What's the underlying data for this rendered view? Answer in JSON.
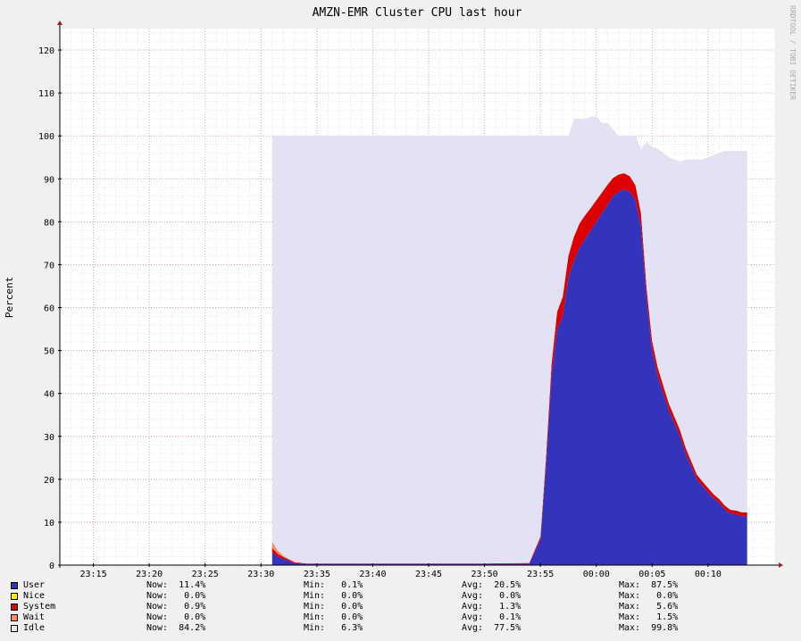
{
  "chart_data": {
    "type": "area",
    "stacked": true,
    "title": "AMZN-EMR Cluster CPU last hour",
    "ylabel": "Percent",
    "watermark": "RRDTOOL / TOBI OETIKER",
    "ylim": [
      0,
      125
    ],
    "yticks": [
      "0",
      "10",
      "20",
      "30",
      "40",
      "50",
      "60",
      "70",
      "80",
      "90",
      "100",
      "110",
      "120"
    ],
    "xlim": [
      "23:12",
      "00:16"
    ],
    "xticks": [
      "23:15",
      "23:20",
      "23:25",
      "23:30",
      "23:35",
      "23:40",
      "23:45",
      "23:50",
      "23:55",
      "00:00",
      "00:05",
      "00:10"
    ],
    "grid": true,
    "colors": {
      "User": "#3333bb",
      "Nice": "#ffea00",
      "System": "#dd0000",
      "Wait": "#ff8a60",
      "Idle": "#e2e2f2"
    },
    "x_minutes_after_2300": [
      31.0,
      31.5,
      32.0,
      32.5,
      33.0,
      34.0,
      40.0,
      45.0,
      50.0,
      54.0,
      55.0,
      55.5,
      56.0,
      56.5,
      57.0,
      57.5,
      58.0,
      58.5,
      59.0,
      59.5,
      60.0,
      60.5,
      61.0,
      61.5,
      62.0,
      62.5,
      63.0,
      63.5,
      64.0,
      64.5,
      65.0,
      65.5,
      66.0,
      66.5,
      67.0,
      67.5,
      68.0,
      68.5,
      69.0,
      69.5,
      70.0,
      70.5,
      71.0,
      71.5,
      72.0,
      72.5,
      73.0,
      73.5
    ],
    "series": [
      {
        "name": "User",
        "values": [
          3.0,
          2.0,
          1.5,
          1.0,
          0.5,
          0.3,
          0.3,
          0.3,
          0.3,
          0.3,
          6.0,
          23.0,
          44.0,
          55.0,
          58.0,
          67.0,
          71.0,
          74.0,
          76.0,
          78.0,
          80.0,
          82.0,
          84.0,
          86.0,
          87.0,
          87.5,
          87.0,
          85.0,
          79.0,
          62.0,
          50.0,
          44.0,
          40.0,
          36.0,
          33.0,
          30.0,
          26.0,
          23.0,
          20.0,
          18.5,
          17.0,
          15.5,
          14.5,
          13.0,
          12.0,
          11.8,
          11.4,
          11.4
        ]
      },
      {
        "name": "Nice",
        "values": [
          0,
          0,
          0,
          0,
          0,
          0,
          0,
          0,
          0,
          0,
          0,
          0,
          0,
          0,
          0,
          0,
          0,
          0,
          0,
          0,
          0,
          0,
          0,
          0,
          0,
          0,
          0,
          0,
          0,
          0,
          0,
          0,
          0,
          0,
          0,
          0,
          0,
          0,
          0,
          0,
          0,
          0,
          0,
          0,
          0,
          0,
          0,
          0
        ]
      },
      {
        "name": "System",
        "values": [
          1.0,
          0.6,
          0.4,
          0.3,
          0.2,
          0.1,
          0.1,
          0.1,
          0.1,
          0.2,
          0.6,
          2.0,
          3.0,
          4.0,
          4.5,
          5.0,
          5.5,
          5.6,
          5.5,
          5.2,
          5.0,
          4.8,
          4.6,
          4.2,
          4.0,
          3.8,
          3.6,
          3.5,
          3.0,
          2.5,
          2.2,
          2.0,
          1.8,
          1.6,
          1.5,
          1.4,
          1.3,
          1.2,
          1.1,
          1.0,
          1.0,
          1.0,
          0.9,
          0.9,
          0.9,
          0.9,
          0.9,
          0.9
        ]
      },
      {
        "name": "Wait",
        "values": [
          1.5,
          0.8,
          0.3,
          0.1,
          0,
          0,
          0,
          0,
          0,
          0,
          0,
          0,
          0,
          0,
          0,
          0,
          0,
          0,
          0,
          0,
          0,
          0,
          0,
          0,
          0,
          0,
          0,
          0,
          0,
          0,
          0,
          0,
          0,
          0,
          0,
          0,
          0,
          0,
          0,
          0,
          0,
          0,
          0,
          0,
          0,
          0,
          0,
          0
        ]
      },
      {
        "name": "Idle",
        "values": [
          94.5,
          96.6,
          97.8,
          98.6,
          99.3,
          99.6,
          99.6,
          99.6,
          99.6,
          99.5,
          93.4,
          75.0,
          53.0,
          41.0,
          37.5,
          28.0,
          27.5,
          24.4,
          22.5,
          21.3,
          19.5,
          16.2,
          14.4,
          11.3,
          9.0,
          8.7,
          9.4,
          11.5,
          15.0,
          34.0,
          45.3,
          51.0,
          54.2,
          57.4,
          60.0,
          62.6,
          67.2,
          70.3,
          73.4,
          75.0,
          77.0,
          79.0,
          80.6,
          82.6,
          83.6,
          83.8,
          84.2,
          84.2
        ]
      }
    ],
    "legend": [
      {
        "name": "User",
        "now": "Now:  11.4%",
        "min": "Min:   0.1%",
        "avg": "Avg:  20.5%",
        "max": "Max:  87.5%"
      },
      {
        "name": "Nice",
        "now": "Now:   0.0%",
        "min": "Min:   0.0%",
        "avg": "Avg:   0.0%",
        "max": "Max:   0.0%"
      },
      {
        "name": "System",
        "now": "Now:   0.9%",
        "min": "Min:   0.0%",
        "avg": "Avg:   1.3%",
        "max": "Max:   5.6%"
      },
      {
        "name": "Wait",
        "now": "Now:   0.0%",
        "min": "Min:   0.0%",
        "avg": "Avg:   0.1%",
        "max": "Max:   1.5%"
      },
      {
        "name": "Idle",
        "now": "Now:  84.2%",
        "min": "Min:   6.3%",
        "avg": "Avg:  77.5%",
        "max": "Max:  99.8%"
      }
    ]
  }
}
